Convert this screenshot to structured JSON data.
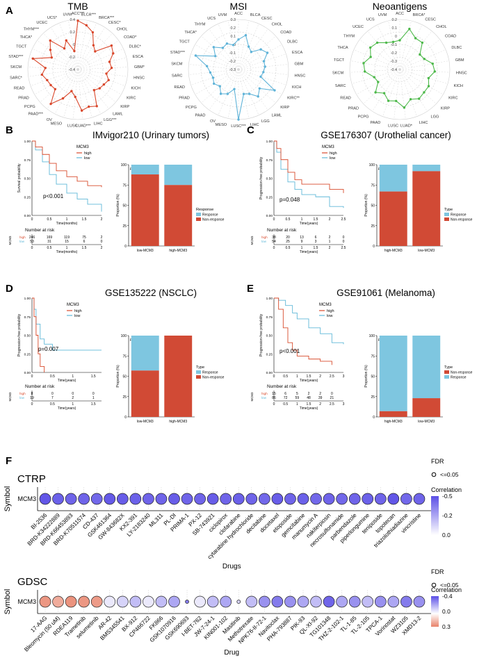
{
  "panel_labels": {
    "A": "A",
    "B": "B",
    "C": "C",
    "D": "D",
    "E": "E",
    "F": "F"
  },
  "colors": {
    "tmb": "#d9472b",
    "msi": "#5fb3d8",
    "neo": "#4cb849",
    "high": "#d84a2b",
    "low": "#5fb8d8",
    "response": "#7ec6e0",
    "nonresponse": "#d14a35",
    "purple": "#5b4fe6",
    "salmon": "#e8826a"
  },
  "chart_data": [
    {
      "type": "radar",
      "title": "TMB",
      "categories": [
        "ACC***",
        "BLCA***",
        "BRCA***",
        "CESC*",
        "CHOL",
        "COAD*",
        "DLBC*",
        "ESCA",
        "GBM*",
        "HNSC",
        "KICH",
        "KIRC",
        "KIRP",
        "LAML",
        "LGG***",
        "LIHC",
        "LUAD***",
        "LUSC",
        "MESO",
        "OV",
        "PAAD***",
        "PCPG",
        "PRAD",
        "READ",
        "SARC*",
        "SKCM",
        "STAD***",
        "TGCT",
        "THCA*",
        "THYM***",
        "UCEC",
        "UCS*",
        "UVM"
      ],
      "values": [
        0.38,
        0.32,
        0.24,
        0.06,
        0.0,
        0.26,
        0.22,
        0.12,
        0.14,
        0.06,
        0.12,
        0.08,
        0.06,
        0.02,
        0.26,
        0.22,
        0.26,
        0.04,
        -0.04,
        0.12,
        0.3,
        0.08,
        0.1,
        0.12,
        0.18,
        0.12,
        0.34,
        0.06,
        0.14,
        0.24,
        0.0,
        0.1,
        -0.1
      ],
      "tick_labels": [
        "0.4",
        "0.2",
        "0",
        "-0.2",
        "-0.4"
      ],
      "rlim": [
        -0.4,
        0.4
      ]
    },
    {
      "type": "radar",
      "title": "MSI",
      "categories": [
        "ACC",
        "BLCA",
        "CESC",
        "CHOL",
        "COAD",
        "DLBC",
        "ESCA",
        "GBM",
        "HNSC",
        "KICH",
        "KIRC**",
        "KIRP",
        "LAML",
        "LGG",
        "LIHC",
        "LUSC***",
        "MESO",
        "OV",
        "PAAD",
        "PCPG",
        "PRAD",
        "READ",
        "SARC",
        "SKCM",
        "STAD***",
        "TGCT",
        "THCA*",
        "THYM",
        "UCS",
        "UVM"
      ],
      "values": [
        0.06,
        0.12,
        0.0,
        -0.04,
        0.06,
        0.1,
        0.02,
        0.02,
        0.0,
        -0.02,
        0.2,
        0.04,
        0.1,
        0.02,
        0.0,
        0.3,
        -0.06,
        0.02,
        0.06,
        0.0,
        0.04,
        0.02,
        0.04,
        0.08,
        0.24,
        0.02,
        0.1,
        0.02,
        0.04,
        0.0
      ],
      "tick_labels": [
        "0.3",
        "0.2",
        "0.1",
        "0",
        "-0.1",
        "-0.2",
        "-0.3"
      ],
      "rlim": [
        -0.3,
        0.3
      ]
    },
    {
      "type": "radar",
      "title": "Neoantigens",
      "categories": [
        "ACC",
        "BRCA*",
        "CESC",
        "CHOL",
        "COAD",
        "DLBC",
        "GBM",
        "HNSC",
        "KICH",
        "KIRC",
        "KIRP",
        "LGG",
        "LIHC",
        "LUAD*",
        "LUSC",
        "PAAD",
        "PCPG",
        "PRAD",
        "READ",
        "SARC",
        "SKCM",
        "TGCT",
        "THCA",
        "THYM",
        "UCEC",
        "UCS",
        "UVM"
      ],
      "values": [
        -0.05,
        0.1,
        0.02,
        0.02,
        -0.1,
        -0.08,
        0.0,
        0.02,
        -0.04,
        0.0,
        0.0,
        0.02,
        -0.02,
        0.06,
        -0.02,
        0.0,
        -0.06,
        0.0,
        -0.1,
        -0.08,
        0.02,
        0.04,
        -0.02,
        0.04,
        0.02,
        -0.04,
        -0.06
      ],
      "tick_labels": [
        "0.2",
        "0.1",
        "0",
        "-0.1",
        "-0.2",
        "-0.3",
        "-0.4"
      ],
      "rlim": [
        -0.4,
        0.2
      ]
    },
    {
      "type": "km",
      "title": "IMvigor210 (Urinary tumors)",
      "ylabel": "Survival probability",
      "xlabel": "Time(months)",
      "legend_title": "MCM3",
      "legend": [
        "high",
        "low"
      ],
      "pvalue": "p<0.001",
      "xticks": [
        "0",
        "0.5",
        "1",
        "1.5",
        "2"
      ],
      "xmax": 2,
      "yticks": [
        "0.00",
        "0.25",
        "0.50",
        "0.75",
        "1.00"
      ],
      "high": [
        [
          0,
          1
        ],
        [
          0.1,
          0.92
        ],
        [
          0.3,
          0.82
        ],
        [
          0.5,
          0.7
        ],
        [
          0.7,
          0.6
        ],
        [
          1.0,
          0.52
        ],
        [
          1.3,
          0.46
        ],
        [
          1.6,
          0.4
        ],
        [
          2.0,
          0.38
        ]
      ],
      "low": [
        [
          0,
          1
        ],
        [
          0.1,
          0.88
        ],
        [
          0.3,
          0.72
        ],
        [
          0.5,
          0.55
        ],
        [
          0.7,
          0.42
        ],
        [
          1.0,
          0.3
        ],
        [
          1.3,
          0.22
        ],
        [
          1.6,
          0.15
        ],
        [
          2.0,
          0.05
        ]
      ],
      "risk_title": "Number at risk",
      "risk_high": [
        "246",
        "169",
        "119",
        "75",
        "2"
      ],
      "risk_low": [
        "53",
        "31",
        "15",
        "6",
        "0"
      ],
      "risk_xlabel": "Time(months)"
    },
    {
      "type": "stacked_bar",
      "ylabel": "Proportion (%)",
      "ptext": "p < 0.05",
      "categories": [
        "low-MCM3",
        "high-MCM3"
      ],
      "legend_title": "Response",
      "legend": [
        "Response",
        "Non-response"
      ],
      "response": [
        12,
        25
      ],
      "nonresponse": [
        88,
        75
      ]
    },
    {
      "type": "km",
      "title": "GSE176307 (Urothelial cancer)",
      "ylabel": "Progression-free probability",
      "xlabel": "Time(years)",
      "legend_title": "MCM3",
      "legend": [
        "high",
        "low"
      ],
      "pvalue": "p=0.048",
      "xticks": [
        "0",
        "0.5",
        "1",
        "1.5",
        "2",
        "2.5"
      ],
      "xmax": 2.5,
      "yticks": [
        "0.00",
        "0.25",
        "0.50",
        "0.75",
        "1.00"
      ],
      "high": [
        [
          0,
          1
        ],
        [
          0.1,
          0.9
        ],
        [
          0.25,
          0.75
        ],
        [
          0.5,
          0.58
        ],
        [
          0.75,
          0.48
        ],
        [
          1.0,
          0.42
        ],
        [
          1.5,
          0.42
        ],
        [
          2.0,
          0.35
        ],
        [
          2.5,
          0.3
        ]
      ],
      "low": [
        [
          0,
          1
        ],
        [
          0.1,
          0.85
        ],
        [
          0.25,
          0.62
        ],
        [
          0.5,
          0.45
        ],
        [
          0.75,
          0.35
        ],
        [
          1.0,
          0.28
        ],
        [
          1.5,
          0.25
        ],
        [
          2.0,
          0.12
        ],
        [
          2.5,
          0.1
        ]
      ],
      "risk_title": "Number at risk",
      "risk_high": [
        "38",
        "20",
        "13",
        "6",
        "2",
        "0"
      ],
      "risk_low": [
        "54",
        "25",
        "9",
        "3",
        "1",
        "0"
      ],
      "risk_xlabel": "Time(years)"
    },
    {
      "type": "stacked_bar",
      "ylabel": "Proportion (%)",
      "ptext": "p < 0.01",
      "categories": [
        "high-MCM3",
        "low-MCM3"
      ],
      "legend_title": "Type",
      "legend": [
        "Response",
        "Non-response"
      ],
      "response": [
        33,
        8
      ],
      "nonresponse": [
        67,
        92
      ]
    },
    {
      "type": "km",
      "title": "GSE135222 (NSCLC)",
      "ylabel": "Progression-free probability",
      "xlabel": "Time(years)",
      "legend_title": "MCM3",
      "legend": [
        "high",
        "low"
      ],
      "pvalue": "p=0.007",
      "xticks": [
        "0",
        "0.5",
        "1",
        "1.5"
      ],
      "xmax": 1.7,
      "yticks": [
        "0.00",
        "0.25",
        "0.50",
        "0.75",
        "1.00"
      ],
      "high": [
        [
          0,
          1
        ],
        [
          0.05,
          0.75
        ],
        [
          0.1,
          0.5
        ],
        [
          0.15,
          0.25
        ],
        [
          0.2,
          0.08
        ],
        [
          0.3,
          0.0
        ]
      ],
      "low": [
        [
          0,
          1
        ],
        [
          0.05,
          0.85
        ],
        [
          0.1,
          0.65
        ],
        [
          0.2,
          0.45
        ],
        [
          0.3,
          0.38
        ],
        [
          0.5,
          0.3
        ],
        [
          1.0,
          0.3
        ],
        [
          1.7,
          0.3
        ]
      ],
      "risk_title": "Number at risk",
      "risk_high": [
        "8",
        "0",
        "0",
        "0"
      ],
      "risk_low": [
        "19",
        "7",
        "2",
        "1"
      ],
      "risk_xlabel": "Time(years)"
    },
    {
      "type": "stacked_bar",
      "ylabel": "Proportion (%)",
      "ptext": "p < 0.05",
      "categories": [
        "low-MCM3",
        "high-MCM3"
      ],
      "legend_title": "Type",
      "legend": [
        "Response",
        "Non-response"
      ],
      "response": [
        43,
        0
      ],
      "nonresponse": [
        57,
        100
      ]
    },
    {
      "type": "km",
      "title": "GSE91061 (Melanoma)",
      "ylabel": "Progression-free probability",
      "xlabel": "Time(years)",
      "legend_title": "MCM3",
      "legend": [
        "high",
        "low"
      ],
      "pvalue": "p<0.001",
      "xticks": [
        "0",
        "0.5",
        "1",
        "1.5",
        "2",
        "2.5",
        "3"
      ],
      "xmax": 3,
      "yticks": [
        "0.00",
        "0.25",
        "0.50",
        "0.75",
        "1.00"
      ],
      "high": [
        [
          0,
          1
        ],
        [
          0.2,
          0.85
        ],
        [
          0.4,
          0.6
        ],
        [
          0.6,
          0.4
        ],
        [
          0.8,
          0.3
        ],
        [
          1.0,
          0.22
        ],
        [
          1.5,
          0.18
        ],
        [
          2.0,
          0.15
        ],
        [
          2.5,
          0.1
        ]
      ],
      "low": [
        [
          0,
          1
        ],
        [
          0.2,
          0.97
        ],
        [
          0.5,
          0.9
        ],
        [
          0.8,
          0.8
        ],
        [
          1.0,
          0.72
        ],
        [
          1.5,
          0.6
        ],
        [
          2.0,
          0.52
        ],
        [
          2.5,
          0.4
        ],
        [
          3.0,
          0.38
        ]
      ],
      "risk_title": "Number at risk",
      "risk_high": [
        "15",
        "6",
        "5",
        "2",
        "2",
        "0"
      ],
      "risk_low": [
        "86",
        "72",
        "59",
        "48",
        "39",
        "21"
      ],
      "risk_xlabel": "Time(years)"
    },
    {
      "type": "stacked_bar",
      "ylabel": "Proportion (%)",
      "ptext": "p = 0.151",
      "categories": [
        "high-MCM3",
        "low-MCM3"
      ],
      "legend_title": "Type",
      "legend": [
        "Non-response",
        "Response"
      ],
      "response": [
        93,
        77
      ],
      "nonresponse": [
        7,
        23
      ]
    },
    {
      "type": "dot",
      "title": "CTRP",
      "ylabel": "Symbol",
      "xlabel": "Drugs",
      "symbol": "MCM3",
      "drugs": [
        "BI-2536",
        "BRD-K34222889",
        "BRD-K66453893",
        "BRD-K70511574",
        "CD-437",
        "GSK461364",
        "GW-843682X",
        "KX2-391",
        "LY-2183240",
        "ML311",
        "PL-DI",
        "PRIMA-1",
        "PX-12",
        "SB-743921",
        "ciclopirox",
        "clofarabine",
        "cytarabine hydrochloride",
        "decitabine",
        "docetaxel",
        "etoposide",
        "gemcitabine",
        "manumycin A",
        "nakiterpiosin",
        "necrosulfonamide",
        "parbendazole",
        "piperlongumine",
        "teniposide",
        "topotecan",
        "triazolothiadiazine",
        "vincristine"
      ],
      "correlation": [
        -0.48,
        -0.45,
        -0.44,
        -0.44,
        -0.43,
        -0.47,
        -0.46,
        -0.45,
        -0.44,
        -0.44,
        -0.46,
        -0.44,
        -0.44,
        -0.46,
        -0.44,
        -0.45,
        -0.44,
        -0.43,
        -0.46,
        -0.44,
        -0.45,
        -0.43,
        -0.44,
        -0.43,
        -0.44,
        -0.45,
        -0.44,
        -0.48,
        -0.43,
        -0.44
      ],
      "fdr_title": "FDR",
      "fdr_label": "<=0.05",
      "colorbar_title": "Correlation",
      "colorbar_ticks": [
        "-0.5",
        "-0.2",
        "0.0"
      ],
      "clim": [
        -0.5,
        0.0
      ]
    },
    {
      "type": "dot",
      "title": "GDSC",
      "ylabel": "Symbol",
      "xlabel": "Drug",
      "symbol": "MCM3",
      "drugs": [
        "17-AAG",
        "Bleomycin (50 uM)",
        "RDEA119",
        "Trametinib",
        "selumetinib",
        "AR-42",
        "BMS345541",
        "BX-912",
        "CP466722",
        "FK866",
        "GSK1070916",
        "GSK690693",
        "I-BET-762",
        "JW-7-24-1",
        "KIN001-102",
        "Masitinib",
        "Methotrexate",
        "NPK76-II-72-1",
        "Navitoclax",
        "PHA-793887",
        "PIK-93",
        "QL-XI-92",
        "TG101348",
        "THZ-2-102-1",
        "TL-1-85",
        "TL-2-105",
        "TPCA-1",
        "Vorinostat",
        "WZ3105",
        "XMD13-2"
      ],
      "correlation": [
        0.25,
        0.2,
        0.26,
        0.25,
        0.24,
        -0.05,
        -0.1,
        -0.15,
        -0.05,
        -0.15,
        -0.2,
        -0.3,
        -0.05,
        -0.15,
        -0.2,
        -0.1,
        -0.15,
        -0.25,
        -0.3,
        -0.25,
        -0.2,
        -0.15,
        -0.35,
        -0.2,
        -0.25,
        -0.15,
        -0.25,
        -0.2,
        -0.3,
        -0.25
      ],
      "small": [
        false,
        false,
        false,
        false,
        false,
        false,
        false,
        false,
        false,
        false,
        false,
        true,
        false,
        false,
        false,
        true,
        false,
        false,
        false,
        false,
        false,
        false,
        false,
        false,
        false,
        false,
        false,
        false,
        false,
        false
      ],
      "fdr_title": "FDR",
      "fdr_label": "<=0.05",
      "colorbar_title": "Correlation",
      "colorbar_ticks": [
        "-0.4",
        "0.0",
        "0.3"
      ],
      "clim": [
        -0.4,
        0.3
      ]
    }
  ]
}
